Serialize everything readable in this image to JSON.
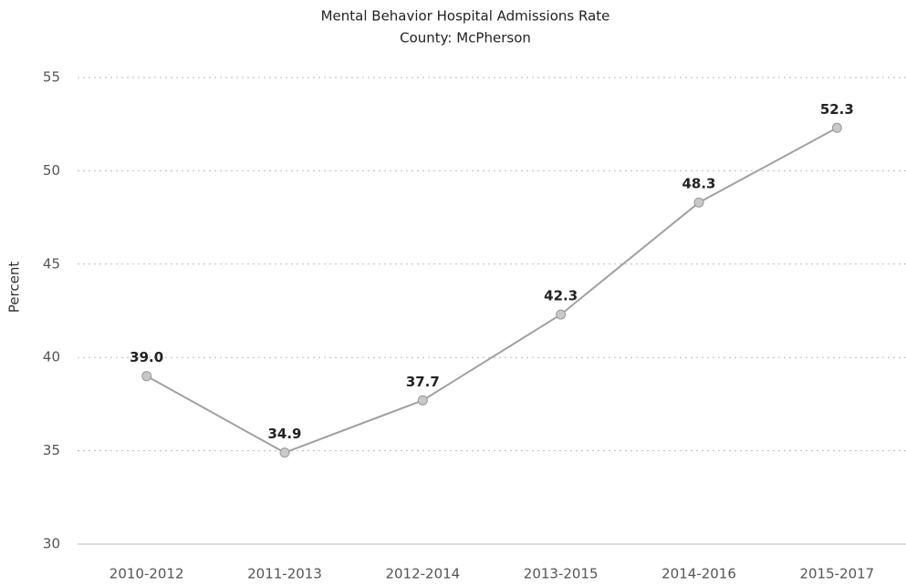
{
  "chart_data": {
    "type": "line",
    "title": "Mental Behavior Hospital Admissions Rate",
    "subtitle": "County: McPherson",
    "y_label": "Percent",
    "categories": [
      "2010-2012",
      "2011-2013",
      "2012-2014",
      "2013-2015",
      "2014-2016",
      "2015-2017"
    ],
    "values": [
      39.0,
      34.9,
      37.7,
      42.3,
      48.3,
      52.3
    ],
    "value_labels": [
      "39.0",
      "34.9",
      "37.7",
      "42.3",
      "48.3",
      "52.3"
    ],
    "color": "#a0a0a0",
    "ylim": [
      30,
      55
    ],
    "yticks": [
      30,
      35,
      40,
      45,
      50,
      55
    ],
    "grid": true
  }
}
